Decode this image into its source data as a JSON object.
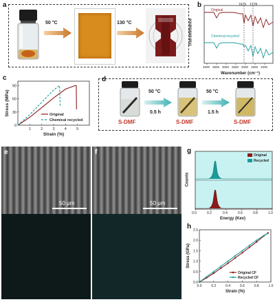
{
  "panels": {
    "a": {
      "letter": "a",
      "temp1": "50 °C",
      "temp2": "130 °C"
    },
    "b": {
      "letter": "b",
      "ylabel": "Transmittance",
      "xlabel": "Wavenumber (cm⁻¹)",
      "peak1": "1675",
      "peak2": "1278",
      "legend_original": "Original",
      "legend_recycled": "Chemical recycled",
      "ticks": [
        "4000",
        "3500",
        "3000",
        "2500",
        "2000",
        "1500",
        "1000"
      ]
    },
    "c": {
      "letter": "c"
    },
    "d": {
      "letter": "d",
      "temp1": "50 °C",
      "time1": "0.5 h",
      "temp2": "50 °C",
      "time2": "1.5 h",
      "label1": "S-DMF",
      "label2": "S-DMF",
      "label3": "S-DMF"
    },
    "e": {
      "letter": "e",
      "scalebar": "50 μm"
    },
    "f": {
      "letter": "f",
      "scalebar": "50 μm"
    },
    "g": {
      "letter": "g",
      "ylabel": "Counts",
      "xlabel": "Energy (Kev)",
      "legend_original": "Original",
      "legend_recycled": "Recycled",
      "ticks": [
        "0.0",
        "0.2",
        "0.4",
        "0.6",
        "0.8",
        "1.0"
      ]
    },
    "h": {
      "letter": "h"
    }
  },
  "colors": {
    "original": "#8b1a1a",
    "recycled": "#1a9a9a",
    "teal_fill": "#9ee6e6",
    "arrow": "#d98b2b"
  },
  "chart_data": [
    {
      "type": "line",
      "panel": "c",
      "xlabel": "Strain (%)",
      "ylabel": "Stress (MPa)",
      "xlim": [
        0,
        6
      ],
      "ylim": [
        0,
        100
      ],
      "xticks": [
        "1",
        "2",
        "3",
        "4",
        "5"
      ],
      "yticks": [
        "0",
        "30",
        "60",
        "90"
      ],
      "series": [
        {
          "name": "Original",
          "style": "solid",
          "color": "#8b1a1a",
          "x": [
            0,
            1,
            2,
            3,
            4,
            4.8,
            4.9,
            4.92
          ],
          "y": [
            0,
            18,
            40,
            62,
            82,
            90,
            90,
            36
          ]
        },
        {
          "name": "Chemical recycled",
          "style": "dashed",
          "color": "#1a9a9a",
          "x": [
            0,
            1,
            2,
            3,
            3.5,
            3.55
          ],
          "y": [
            0,
            24,
            52,
            80,
            90,
            44
          ]
        }
      ]
    },
    {
      "type": "line",
      "panel": "h",
      "xlabel": "Strain (%)",
      "ylabel": "Stress (GPa)",
      "xlim": [
        0,
        1.0
      ],
      "ylim": [
        0,
        2.5
      ],
      "xticks": [
        "0.0",
        "0.2",
        "0.4",
        "0.6",
        "0.8",
        "1.0"
      ],
      "yticks": [
        "0.0",
        "0.5",
        "1.0",
        "1.5",
        "2.0",
        "2.5"
      ],
      "series": [
        {
          "name": "Original CF",
          "color": "#8b1a1a",
          "marker": "circle",
          "x": [
            0,
            0.1,
            0.2,
            0.3,
            0.4,
            0.5,
            0.6,
            0.7,
            0.8,
            0.9,
            0.96
          ],
          "y": [
            0,
            0.2,
            0.42,
            0.66,
            0.9,
            1.15,
            1.4,
            1.66,
            1.92,
            2.2,
            2.35
          ]
        },
        {
          "name": "Recycled CF",
          "color": "#1a9a9a",
          "marker": "triangle",
          "x": [
            0,
            0.1,
            0.2,
            0.3,
            0.4,
            0.5,
            0.6,
            0.7,
            0.8,
            0.9,
            0.95
          ],
          "y": [
            0,
            0.25,
            0.5,
            0.75,
            1.0,
            1.25,
            1.5,
            1.75,
            2.0,
            2.22,
            2.32
          ]
        }
      ]
    }
  ]
}
